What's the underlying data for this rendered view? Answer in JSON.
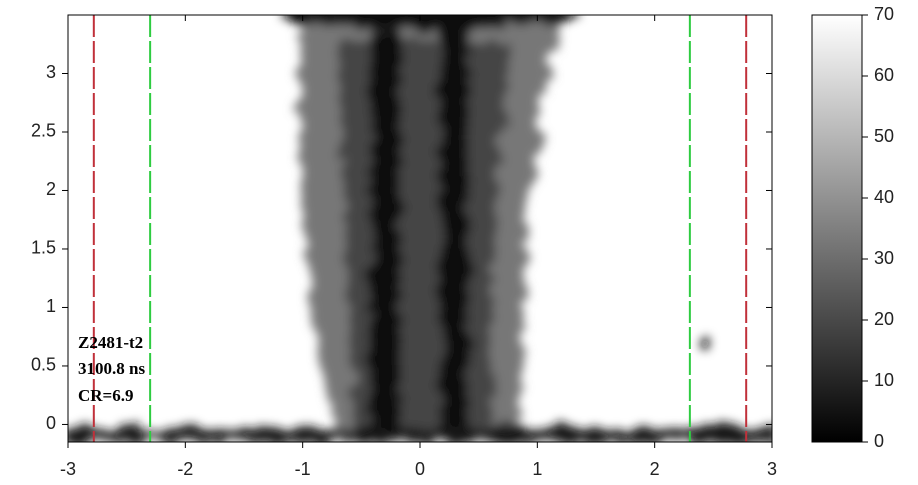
{
  "chart_data": {
    "type": "image",
    "xlim": [
      -3,
      3
    ],
    "xticks": [
      -3,
      -2,
      -1,
      0,
      1,
      2,
      3
    ],
    "ylim": [
      -0.15,
      3.5
    ],
    "yticks": [
      0,
      0.5,
      1,
      1.5,
      2,
      2.5,
      3
    ],
    "colormap": "gray",
    "clim": [
      0,
      70
    ],
    "cticks": [
      0,
      10,
      20,
      30,
      40,
      50,
      60,
      70
    ],
    "lines": [
      {
        "x": -2.78,
        "color": "#c0303a"
      },
      {
        "x": -2.3,
        "color": "#2ecc40"
      },
      {
        "x": 2.3,
        "color": "#2ecc40"
      },
      {
        "x": 2.78,
        "color": "#c0303a"
      }
    ],
    "annotations": [
      "Z2481-t2",
      "3100.8 ns",
      "CR=6.9"
    ]
  }
}
